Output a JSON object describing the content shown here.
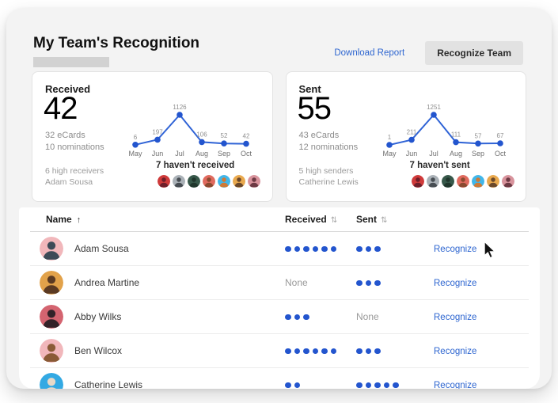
{
  "header": {
    "title": "My Team's Recognition",
    "download_report": "Download Report",
    "recognize_team": "Recognize Team"
  },
  "colors": {
    "accent_blue": "#2e66d0",
    "line_blue": "#2f63d6",
    "dot_blue": "#2355ce"
  },
  "cards": [
    {
      "title": "Received",
      "big_number": "42",
      "stat_line1": "32 eCards",
      "stat_line2": "10 nominations",
      "high_label": "6 high receivers",
      "high_name": "Adam Sousa",
      "havent_label": "7 haven't received",
      "avatars": [
        {
          "bg": "#cf3a3a",
          "fg": "#6e1f2a"
        },
        {
          "bg": "#aab1b7",
          "fg": "#474d53"
        },
        {
          "bg": "#37584a",
          "fg": "#20362c"
        },
        {
          "bg": "#e06a5e",
          "fg": "#8a4a30"
        },
        {
          "bg": "#41b7ea",
          "fg": "#cf7a36"
        },
        {
          "bg": "#e9a94e",
          "fg": "#6b482a"
        },
        {
          "bg": "#d8939c",
          "fg": "#6d3a44"
        }
      ]
    },
    {
      "title": "Sent",
      "big_number": "55",
      "stat_line1": "43 eCards",
      "stat_line2": "12 nominations",
      "high_label": "5 high senders",
      "high_name": "Catherine Lewis",
      "havent_label": "7 haven't sent",
      "avatars": [
        {
          "bg": "#cf3a3a",
          "fg": "#6e1f2a"
        },
        {
          "bg": "#aab1b7",
          "fg": "#474d53"
        },
        {
          "bg": "#37584a",
          "fg": "#20362c"
        },
        {
          "bg": "#e06a5e",
          "fg": "#8a4a30"
        },
        {
          "bg": "#41b7ea",
          "fg": "#cf7a36"
        },
        {
          "bg": "#e9a94e",
          "fg": "#6b482a"
        },
        {
          "bg": "#d8939c",
          "fg": "#6d3a44"
        }
      ]
    }
  ],
  "chart_data": [
    {
      "type": "line",
      "title": "Received monthly trend",
      "x": [
        "May",
        "Jun",
        "Jul",
        "Aug",
        "Sep",
        "Oct"
      ],
      "values": [
        6,
        197,
        1126,
        106,
        52,
        42
      ],
      "ylim": [
        0,
        1126
      ],
      "grid": false,
      "point_labels": true,
      "legend": "none"
    },
    {
      "type": "line",
      "title": "Sent monthly trend",
      "x": [
        "May",
        "Jun",
        "Jul",
        "Aug",
        "Sep",
        "Oct"
      ],
      "values": [
        1,
        211,
        1251,
        111,
        57,
        67
      ],
      "ylim": [
        0,
        1251
      ],
      "grid": false,
      "point_labels": true,
      "legend": "none"
    }
  ],
  "table": {
    "columns": [
      {
        "label": "Name",
        "sort_icon": "↑"
      },
      {
        "label": "Received",
        "sort_icon": "⇅"
      },
      {
        "label": "Sent",
        "sort_icon": "⇅"
      }
    ],
    "rows": [
      {
        "name": "Adam Sousa",
        "received": 6,
        "sent": 3,
        "action": "Recognize",
        "avatar": {
          "bg": "#f1b7bb",
          "fg": "#3c4a57"
        }
      },
      {
        "name": "Andrea Martine",
        "received": "None",
        "sent": 3,
        "action": "Recognize",
        "avatar": {
          "bg": "#e2a24a",
          "fg": "#5b3a22"
        }
      },
      {
        "name": "Abby Wilks",
        "received": 3,
        "sent": "None",
        "action": "Recognize",
        "avatar": {
          "bg": "#d46470",
          "fg": "#332228"
        }
      },
      {
        "name": "Ben Wilcox",
        "received": 6,
        "sent": 3,
        "action": "Recognize",
        "avatar": {
          "bg": "#f1b7bb",
          "fg": "#8a5a36"
        }
      },
      {
        "name": "Catherine Lewis",
        "received": 2,
        "sent": 5,
        "action": "Recognize",
        "avatar": {
          "bg": "#33a9e3",
          "fg": "#e8d9c8"
        }
      }
    ]
  }
}
